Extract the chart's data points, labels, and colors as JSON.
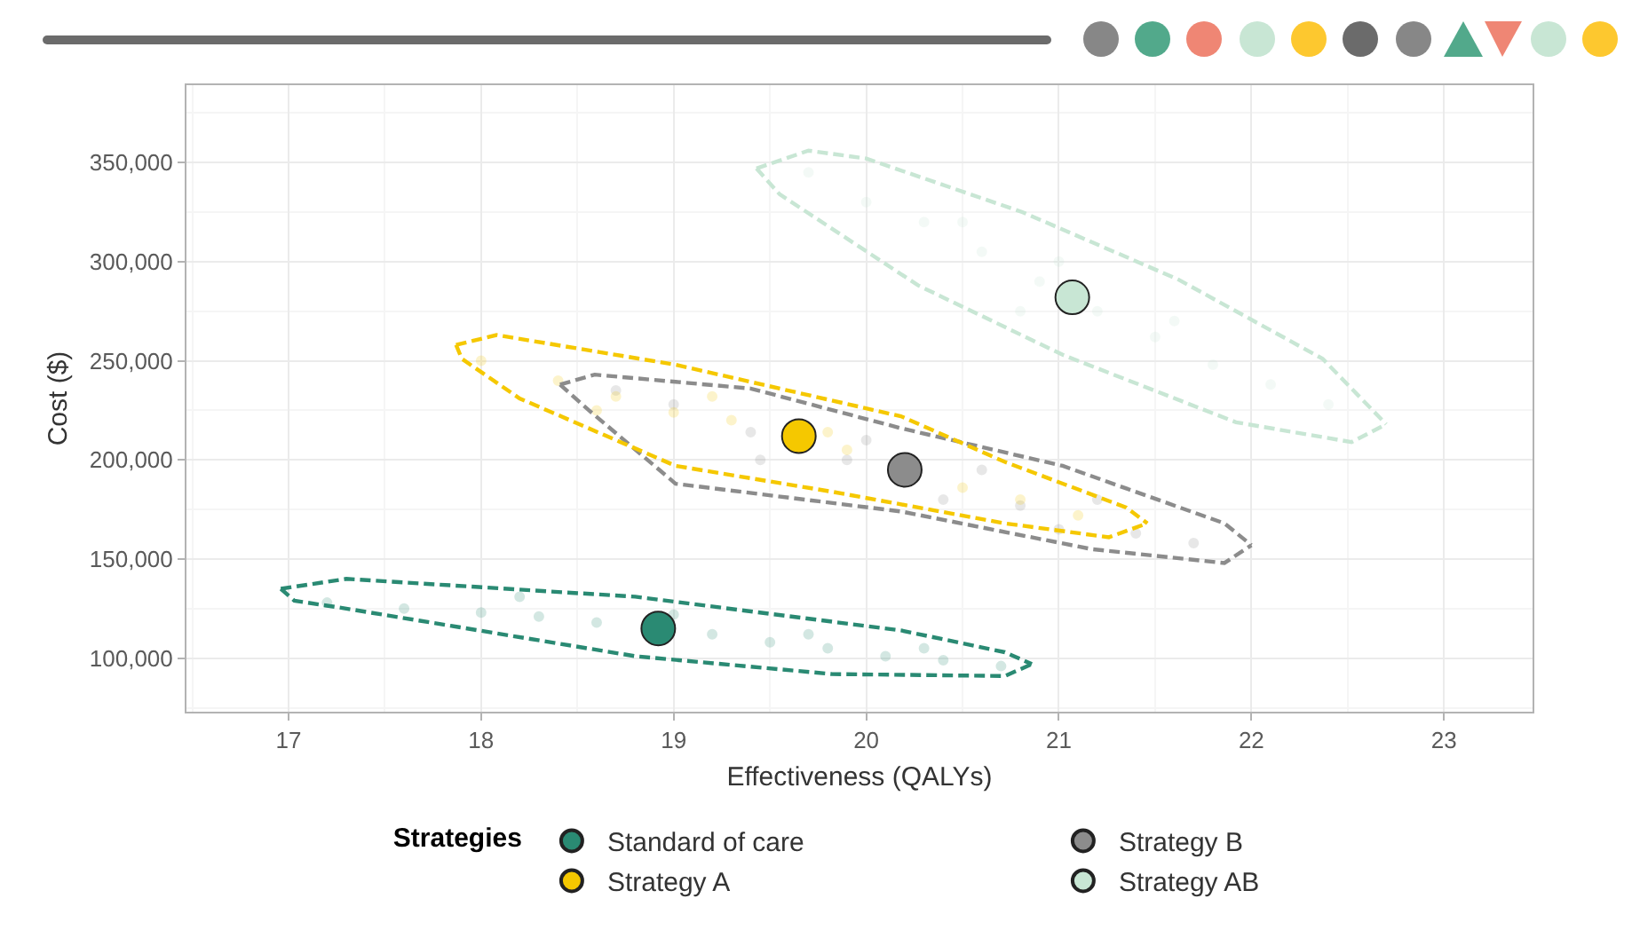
{
  "chart_data": {
    "type": "scatter",
    "xlabel": "Effectiveness (QALYs)",
    "ylabel": "Cost ($)",
    "legend_title": "Strategies",
    "xlim": [
      16.47,
      23.46
    ],
    "xticks": [
      17,
      18,
      19,
      20,
      21,
      22,
      23
    ],
    "ylim": [
      73000,
      389000
    ],
    "yticks": [
      {
        "value": 100000,
        "label": "100,000"
      },
      {
        "value": 150000,
        "label": "150,000"
      },
      {
        "value": 200000,
        "label": "200,000"
      },
      {
        "value": 250000,
        "label": "250,000"
      },
      {
        "value": 300000,
        "label": "300,000"
      },
      {
        "value": 350000,
        "label": "350,000"
      }
    ],
    "grid": true,
    "legend": "bottom",
    "marker": "circle",
    "line_style": "dashed",
    "series": [
      {
        "color": "#2a8a73",
        "x": [
          17.2,
          17.6,
          18.0,
          18.3,
          18.6,
          19.2,
          19.5,
          19.8,
          20.1,
          20.4,
          20.7,
          18.2,
          19.0,
          19.7,
          20.3
        ],
        "values": [
          128000,
          125000,
          123000,
          121000,
          118000,
          112000,
          108000,
          105000,
          101000,
          99000,
          96000,
          131000,
          122000,
          112000,
          105000
        ]
      },
      {
        "color": "#8c8c8c",
        "x": [
          18.7,
          19.0,
          19.4,
          19.45,
          19.9,
          20.4,
          20.8,
          21.0,
          21.4,
          21.7,
          20.0,
          20.6,
          21.2
        ],
        "values": [
          235000,
          228000,
          214000,
          200000,
          200000,
          180000,
          177000,
          165000,
          163000,
          158000,
          210000,
          195000,
          180000
        ]
      },
      {
        "color": "#f5c800",
        "x": [
          18.0,
          18.4,
          18.7,
          19.0,
          19.3,
          19.9,
          20.5,
          20.8,
          21.1,
          19.2,
          19.8,
          18.6
        ],
        "values": [
          250000,
          240000,
          232000,
          224000,
          220000,
          205000,
          186000,
          180000,
          172000,
          232000,
          214000,
          225000
        ]
      },
      {
        "color": "#c8e6d4",
        "x": [
          19.7,
          20.0,
          20.3,
          20.6,
          20.9,
          21.2,
          21.5,
          21.8,
          22.1,
          22.4,
          20.5,
          21.0,
          21.6,
          20.8
        ],
        "values": [
          345000,
          330000,
          320000,
          305000,
          290000,
          275000,
          262000,
          248000,
          238000,
          228000,
          320000,
          300000,
          270000,
          275000
        ]
      },
      {
        "type": "line",
        "marker": "none",
        "color": "#2a8a73",
        "x": [
          16.96,
          17.3,
          18.8,
          20.18,
          20.72,
          20.86
        ],
        "values": [
          135000,
          140000,
          131000,
          114000,
          103000,
          97000
        ]
      },
      {
        "type": "line",
        "marker": "none",
        "color": "#2a8a73",
        "x": [
          16.96,
          17.03,
          17.3,
          18.8,
          19.82,
          20.72,
          20.86
        ],
        "values": [
          135000,
          129000,
          125000,
          101000,
          92000,
          91000,
          97000
        ]
      },
      {
        "type": "line",
        "marker": "none",
        "color": "#8c8c8c",
        "x": [
          18.41,
          18.59,
          19.4,
          20.18,
          21.02,
          21.86,
          22.0
        ],
        "values": [
          238000,
          243000,
          236000,
          216000,
          197000,
          168000,
          157000
        ]
      },
      {
        "type": "line",
        "marker": "none",
        "color": "#8c8c8c",
        "x": [
          18.41,
          18.56,
          19.01,
          20.18,
          21.17,
          21.86,
          22.0
        ],
        "values": [
          238000,
          225000,
          188000,
          174000,
          155000,
          148000,
          157000
        ]
      },
      {
        "type": "line",
        "marker": "none",
        "color": "#f5c800",
        "x": [
          17.87,
          18.08,
          19.01,
          20.18,
          20.72,
          21.35,
          21.46
        ],
        "values": [
          258000,
          263000,
          248000,
          222000,
          199000,
          176000,
          168000
        ]
      },
      {
        "type": "line",
        "marker": "none",
        "color": "#f5c800",
        "x": [
          17.87,
          17.9,
          18.2,
          19.01,
          19.82,
          20.72,
          21.26,
          21.46
        ],
        "values": [
          258000,
          251000,
          231000,
          197000,
          184000,
          168000,
          161000,
          168000
        ]
      },
      {
        "type": "line",
        "marker": "none",
        "color": "#c8e6d4",
        "x": [
          19.43,
          19.7,
          20.0,
          20.81,
          21.62,
          22.37,
          22.7
        ],
        "values": [
          347000,
          356000,
          352000,
          325000,
          291000,
          251000,
          218000
        ]
      },
      {
        "type": "line",
        "marker": "none",
        "color": "#c8e6d4",
        "x": [
          19.43,
          19.55,
          20.27,
          21.02,
          21.92,
          22.52,
          22.7
        ],
        "values": [
          347000,
          334000,
          288000,
          253000,
          219000,
          209000,
          218000
        ]
      },
      {
        "name": "Standard of care",
        "color": "#2a8a73",
        "x": [
          18.92
        ],
        "values": [
          115000
        ]
      },
      {
        "name": "Strategy B",
        "color": "#8c8c8c",
        "x": [
          20.2
        ],
        "values": [
          195000
        ]
      },
      {
        "name": "Strategy A",
        "color": "#f5c800",
        "x": [
          19.65
        ],
        "values": [
          212000
        ]
      },
      {
        "name": "Strategy AB",
        "color": "#c8e6d4",
        "x": [
          21.07
        ],
        "values": [
          282000
        ]
      }
    ]
  }
}
